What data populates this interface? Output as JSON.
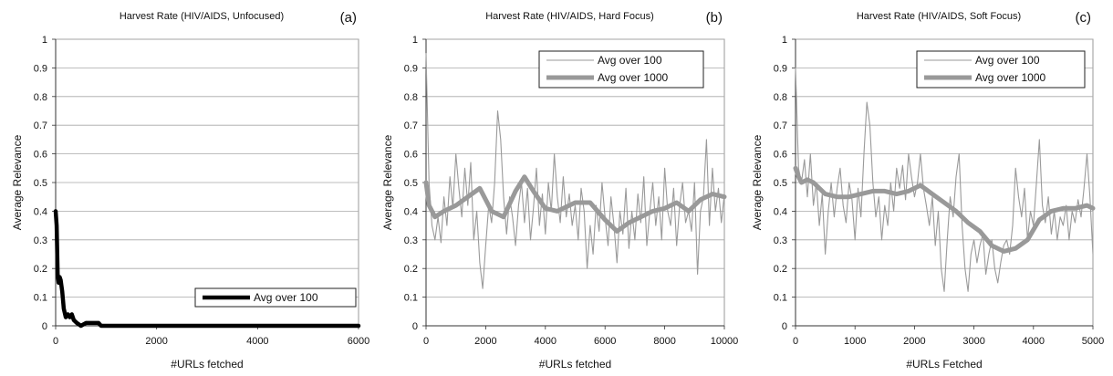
{
  "chart_data": [
    {
      "type": "line",
      "panel_label": "(a)",
      "title": "Harvest Rate (HIV/AIDS, Unfocused)",
      "xlabel": "#URLs fetched",
      "ylabel": "Average Relevance",
      "xlim": [
        0,
        6000
      ],
      "ylim": [
        0,
        1
      ],
      "xticks": [
        "0",
        "2000",
        "4000",
        "6000"
      ],
      "yticks": [
        "0",
        "0.1",
        "0.2",
        "0.3",
        "0.4",
        "0.5",
        "0.6",
        "0.7",
        "0.8",
        "0.9",
        "1"
      ],
      "grid": true,
      "legend_position": "bottom-right",
      "series": [
        {
          "name": "Avg over 100",
          "color": "#000000",
          "x": [
            0,
            20,
            40,
            60,
            80,
            100,
            130,
            160,
            200,
            240,
            280,
            320,
            360,
            420,
            500,
            600,
            700,
            800,
            850,
            900,
            1000,
            2000,
            3000,
            4000,
            5000,
            6000
          ],
          "y": [
            0.4,
            0.35,
            0.18,
            0.15,
            0.17,
            0.16,
            0.12,
            0.06,
            0.03,
            0.04,
            0.03,
            0.04,
            0.02,
            0.01,
            0.0,
            0.01,
            0.01,
            0.01,
            0.01,
            0.0,
            0.0,
            0.0,
            0.0,
            0.0,
            0.0,
            0.0
          ]
        }
      ]
    },
    {
      "type": "line",
      "panel_label": "(b)",
      "title": "Harvest Rate (HIV/AIDS, Hard Focus)",
      "xlabel": "#URLs fetched",
      "ylabel": "Average Relevance",
      "xlim": [
        0,
        10000
      ],
      "ylim": [
        0,
        1
      ],
      "xticks": [
        "0",
        "2000",
        "4000",
        "6000",
        "8000",
        "10000"
      ],
      "yticks": [
        "0",
        "0.1",
        "0.2",
        "0.3",
        "0.4",
        "0.5",
        "0.6",
        "0.7",
        "0.8",
        "0.9",
        "1"
      ],
      "grid": true,
      "legend_position": "top-right",
      "series": [
        {
          "name": "Avg over 100",
          "color": "#9a9a9a",
          "x": [
            0,
            100,
            200,
            300,
            400,
            500,
            600,
            700,
            800,
            900,
            1000,
            1100,
            1200,
            1300,
            1400,
            1500,
            1600,
            1700,
            1800,
            1900,
            2000,
            2100,
            2200,
            2300,
            2400,
            2500,
            2600,
            2700,
            2800,
            2900,
            3000,
            3100,
            3200,
            3300,
            3400,
            3500,
            3600,
            3700,
            3800,
            3900,
            4000,
            4100,
            4200,
            4300,
            4400,
            4500,
            4600,
            4700,
            4800,
            4900,
            5000,
            5100,
            5200,
            5300,
            5400,
            5500,
            5600,
            5700,
            5800,
            5900,
            6000,
            6100,
            6200,
            6300,
            6400,
            6500,
            6600,
            6700,
            6800,
            6900,
            7000,
            7100,
            7200,
            7300,
            7400,
            7500,
            7600,
            7700,
            7800,
            7900,
            8000,
            8100,
            8200,
            8300,
            8400,
            8500,
            8600,
            8700,
            8800,
            8900,
            9000,
            9100,
            9200,
            9300,
            9400,
            9500,
            9600,
            9700,
            9800,
            9900,
            10000
          ],
          "y": [
            0.95,
            0.5,
            0.35,
            0.3,
            0.38,
            0.29,
            0.45,
            0.35,
            0.52,
            0.41,
            0.6,
            0.48,
            0.38,
            0.55,
            0.42,
            0.57,
            0.3,
            0.4,
            0.22,
            0.13,
            0.28,
            0.42,
            0.36,
            0.5,
            0.75,
            0.65,
            0.45,
            0.32,
            0.45,
            0.38,
            0.28,
            0.42,
            0.5,
            0.36,
            0.48,
            0.3,
            0.41,
            0.55,
            0.35,
            0.46,
            0.32,
            0.5,
            0.4,
            0.6,
            0.45,
            0.36,
            0.52,
            0.38,
            0.46,
            0.35,
            0.42,
            0.3,
            0.48,
            0.4,
            0.2,
            0.35,
            0.25,
            0.42,
            0.33,
            0.5,
            0.38,
            0.28,
            0.45,
            0.35,
            0.22,
            0.4,
            0.32,
            0.48,
            0.27,
            0.4,
            0.3,
            0.46,
            0.36,
            0.52,
            0.28,
            0.4,
            0.5,
            0.35,
            0.45,
            0.3,
            0.55,
            0.4,
            0.35,
            0.48,
            0.28,
            0.42,
            0.5,
            0.36,
            0.4,
            0.33,
            0.5,
            0.18,
            0.4,
            0.45,
            0.65,
            0.35,
            0.55,
            0.4,
            0.48,
            0.36,
            0.46
          ]
        },
        {
          "name": "Avg over 1000",
          "color": "#999999",
          "x": [
            0,
            100,
            300,
            600,
            1000,
            1400,
            1800,
            2200,
            2600,
            3000,
            3300,
            3600,
            4000,
            4400,
            5000,
            5500,
            6000,
            6400,
            6800,
            7200,
            7600,
            8000,
            8400,
            8800,
            9200,
            9600,
            10000
          ],
          "y": [
            0.5,
            0.42,
            0.38,
            0.4,
            0.42,
            0.45,
            0.48,
            0.4,
            0.38,
            0.47,
            0.52,
            0.47,
            0.41,
            0.4,
            0.43,
            0.43,
            0.37,
            0.33,
            0.36,
            0.38,
            0.4,
            0.41,
            0.43,
            0.4,
            0.44,
            0.46,
            0.45
          ]
        }
      ]
    },
    {
      "type": "line",
      "panel_label": "(c)",
      "title": "Harvest Rate (HIV/AIDS, Soft Focus)",
      "xlabel": "#URLs Fetched",
      "ylabel": "Average Relevance",
      "xlim": [
        0,
        5000
      ],
      "ylim": [
        0,
        1
      ],
      "xticks": [
        "0",
        "1000",
        "2000",
        "3000",
        "4000",
        "5000"
      ],
      "yticks": [
        "0",
        "0.1",
        "0.2",
        "0.3",
        "0.4",
        "0.5",
        "0.6",
        "0.7",
        "0.8",
        "0.9",
        "1"
      ],
      "grid": true,
      "legend_position": "top-right",
      "series": [
        {
          "name": "Avg over 100",
          "color": "#9a9a9a",
          "x": [
            0,
            50,
            100,
            150,
            200,
            250,
            300,
            350,
            400,
            450,
            500,
            550,
            600,
            650,
            700,
            750,
            800,
            850,
            900,
            950,
            1000,
            1050,
            1100,
            1150,
            1200,
            1250,
            1300,
            1350,
            1400,
            1450,
            1500,
            1550,
            1600,
            1650,
            1700,
            1750,
            1800,
            1850,
            1900,
            1950,
            2000,
            2050,
            2100,
            2150,
            2200,
            2250,
            2300,
            2350,
            2400,
            2450,
            2500,
            2550,
            2600,
            2650,
            2700,
            2750,
            2800,
            2850,
            2900,
            2950,
            3000,
            3050,
            3100,
            3150,
            3200,
            3250,
            3300,
            3350,
            3400,
            3450,
            3500,
            3550,
            3600,
            3650,
            3700,
            3750,
            3800,
            3850,
            3900,
            3950,
            4000,
            4050,
            4100,
            4150,
            4200,
            4250,
            4300,
            4350,
            4400,
            4450,
            4500,
            4550,
            4600,
            4650,
            4700,
            4750,
            4800,
            4850,
            4900,
            4950,
            5000
          ],
          "y": [
            0.9,
            0.55,
            0.5,
            0.58,
            0.45,
            0.6,
            0.42,
            0.5,
            0.35,
            0.46,
            0.25,
            0.4,
            0.5,
            0.38,
            0.48,
            0.55,
            0.42,
            0.36,
            0.5,
            0.44,
            0.3,
            0.48,
            0.38,
            0.6,
            0.78,
            0.7,
            0.5,
            0.38,
            0.45,
            0.3,
            0.42,
            0.35,
            0.5,
            0.4,
            0.55,
            0.48,
            0.56,
            0.44,
            0.6,
            0.52,
            0.45,
            0.5,
            0.6,
            0.48,
            0.42,
            0.35,
            0.45,
            0.28,
            0.4,
            0.2,
            0.12,
            0.3,
            0.45,
            0.38,
            0.52,
            0.6,
            0.35,
            0.2,
            0.12,
            0.25,
            0.3,
            0.22,
            0.28,
            0.32,
            0.18,
            0.25,
            0.3,
            0.2,
            0.15,
            0.22,
            0.28,
            0.3,
            0.25,
            0.35,
            0.55,
            0.45,
            0.38,
            0.48,
            0.3,
            0.4,
            0.35,
            0.5,
            0.65,
            0.42,
            0.36,
            0.45,
            0.32,
            0.4,
            0.3,
            0.38,
            0.35,
            0.42,
            0.3,
            0.4,
            0.36,
            0.44,
            0.38,
            0.48,
            0.6,
            0.45,
            0.25
          ]
        },
        {
          "name": "Avg over 1000",
          "color": "#999999",
          "x": [
            0,
            50,
            100,
            200,
            300,
            400,
            500,
            700,
            900,
            1100,
            1300,
            1500,
            1700,
            1900,
            2100,
            2300,
            2500,
            2700,
            2900,
            3100,
            3300,
            3500,
            3700,
            3900,
            4100,
            4300,
            4500,
            4700,
            4900,
            5000
          ],
          "y": [
            0.55,
            0.52,
            0.5,
            0.51,
            0.5,
            0.48,
            0.46,
            0.45,
            0.45,
            0.46,
            0.47,
            0.47,
            0.46,
            0.47,
            0.49,
            0.46,
            0.43,
            0.4,
            0.36,
            0.33,
            0.28,
            0.26,
            0.27,
            0.3,
            0.37,
            0.4,
            0.41,
            0.41,
            0.42,
            0.41
          ]
        }
      ]
    }
  ]
}
